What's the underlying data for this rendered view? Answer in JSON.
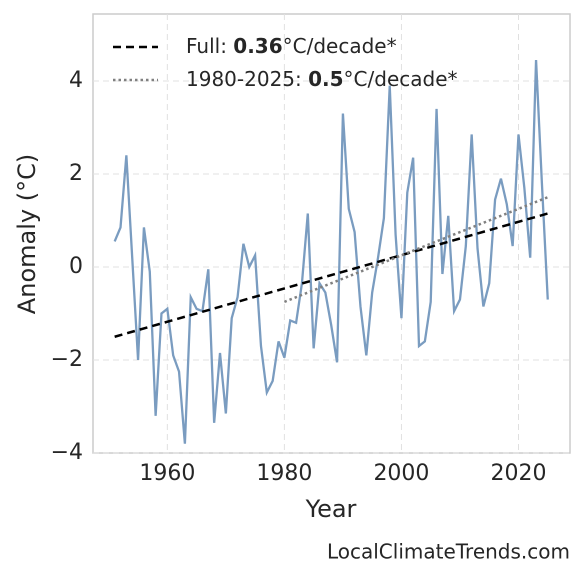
{
  "chart_data": {
    "type": "line",
    "xlabel": "Year",
    "ylabel": "Anomaly (°C)",
    "source": "LocalClimateTrends.com",
    "xlim": [
      1947.3,
      2028.8
    ],
    "xticks": [
      1960,
      1980,
      2000,
      2020
    ],
    "ylim": [
      -4,
      5.44
    ],
    "yticks": [
      {
        "value": -4,
        "label": "−4"
      },
      {
        "value": -2,
        "label": "−2"
      },
      0,
      2,
      4
    ],
    "grid": true,
    "legend": "upper left",
    "series": [
      {
        "color": "#7a9cc0",
        "style": "solid",
        "x": [
          1951,
          1952,
          1953,
          1954,
          1955,
          1956,
          1957,
          1958,
          1959,
          1960,
          1961,
          1962,
          1963,
          1964,
          1965,
          1966,
          1967,
          1968,
          1969,
          1970,
          1971,
          1972,
          1973,
          1974,
          1975,
          1976,
          1977,
          1978,
          1979,
          1980,
          1981,
          1982,
          1983,
          1984,
          1985,
          1986,
          1987,
          1988,
          1989,
          1990,
          1991,
          1992,
          1993,
          1994,
          1995,
          1996,
          1997,
          1998,
          1999,
          2000,
          2001,
          2002,
          2003,
          2004,
          2005,
          2006,
          2007,
          2008,
          2009,
          2010,
          2011,
          2012,
          2013,
          2014,
          2015,
          2016,
          2017,
          2018,
          2019,
          2020,
          2021,
          2022,
          2023,
          2024,
          2025
        ],
        "values": [
          0.55,
          0.85,
          2.4,
          0.2,
          -2.0,
          0.85,
          -0.1,
          -3.2,
          -1.0,
          -0.9,
          -1.9,
          -2.25,
          -3.8,
          -0.65,
          -0.9,
          -0.95,
          -0.05,
          -3.35,
          -1.85,
          -3.15,
          -1.1,
          -0.65,
          0.5,
          0.0,
          0.25,
          -1.7,
          -2.7,
          -2.45,
          -1.6,
          -1.95,
          -1.15,
          -1.2,
          -0.35,
          1.15,
          -1.75,
          -0.35,
          -0.55,
          -1.25,
          -2.05,
          3.3,
          1.25,
          0.75,
          -0.85,
          -1.9,
          -0.55,
          0.2,
          1.05,
          3.9,
          0.7,
          -1.1,
          1.6,
          2.35,
          -1.7,
          -1.6,
          -0.75,
          3.4,
          -0.15,
          1.1,
          -0.95,
          -0.7,
          0.45,
          2.85,
          0.4,
          -0.85,
          -0.35,
          1.45,
          1.9,
          1.35,
          0.45,
          2.85,
          1.7,
          0.2,
          4.45,
          1.8,
          -0.7
        ]
      },
      {
        "name": "Full: 0.36°C/decade*",
        "bold": "0.36",
        "color": "#000000",
        "style": "dashed",
        "x": [
          1951,
          2025
        ],
        "values": [
          -1.5,
          1.15
        ]
      },
      {
        "name": "1980-2025: 0.5°C/decade*",
        "bold": "0.5",
        "color": "#808080",
        "style": "dotted",
        "x": [
          1980,
          2025
        ],
        "values": [
          -0.75,
          1.5
        ]
      }
    ]
  }
}
